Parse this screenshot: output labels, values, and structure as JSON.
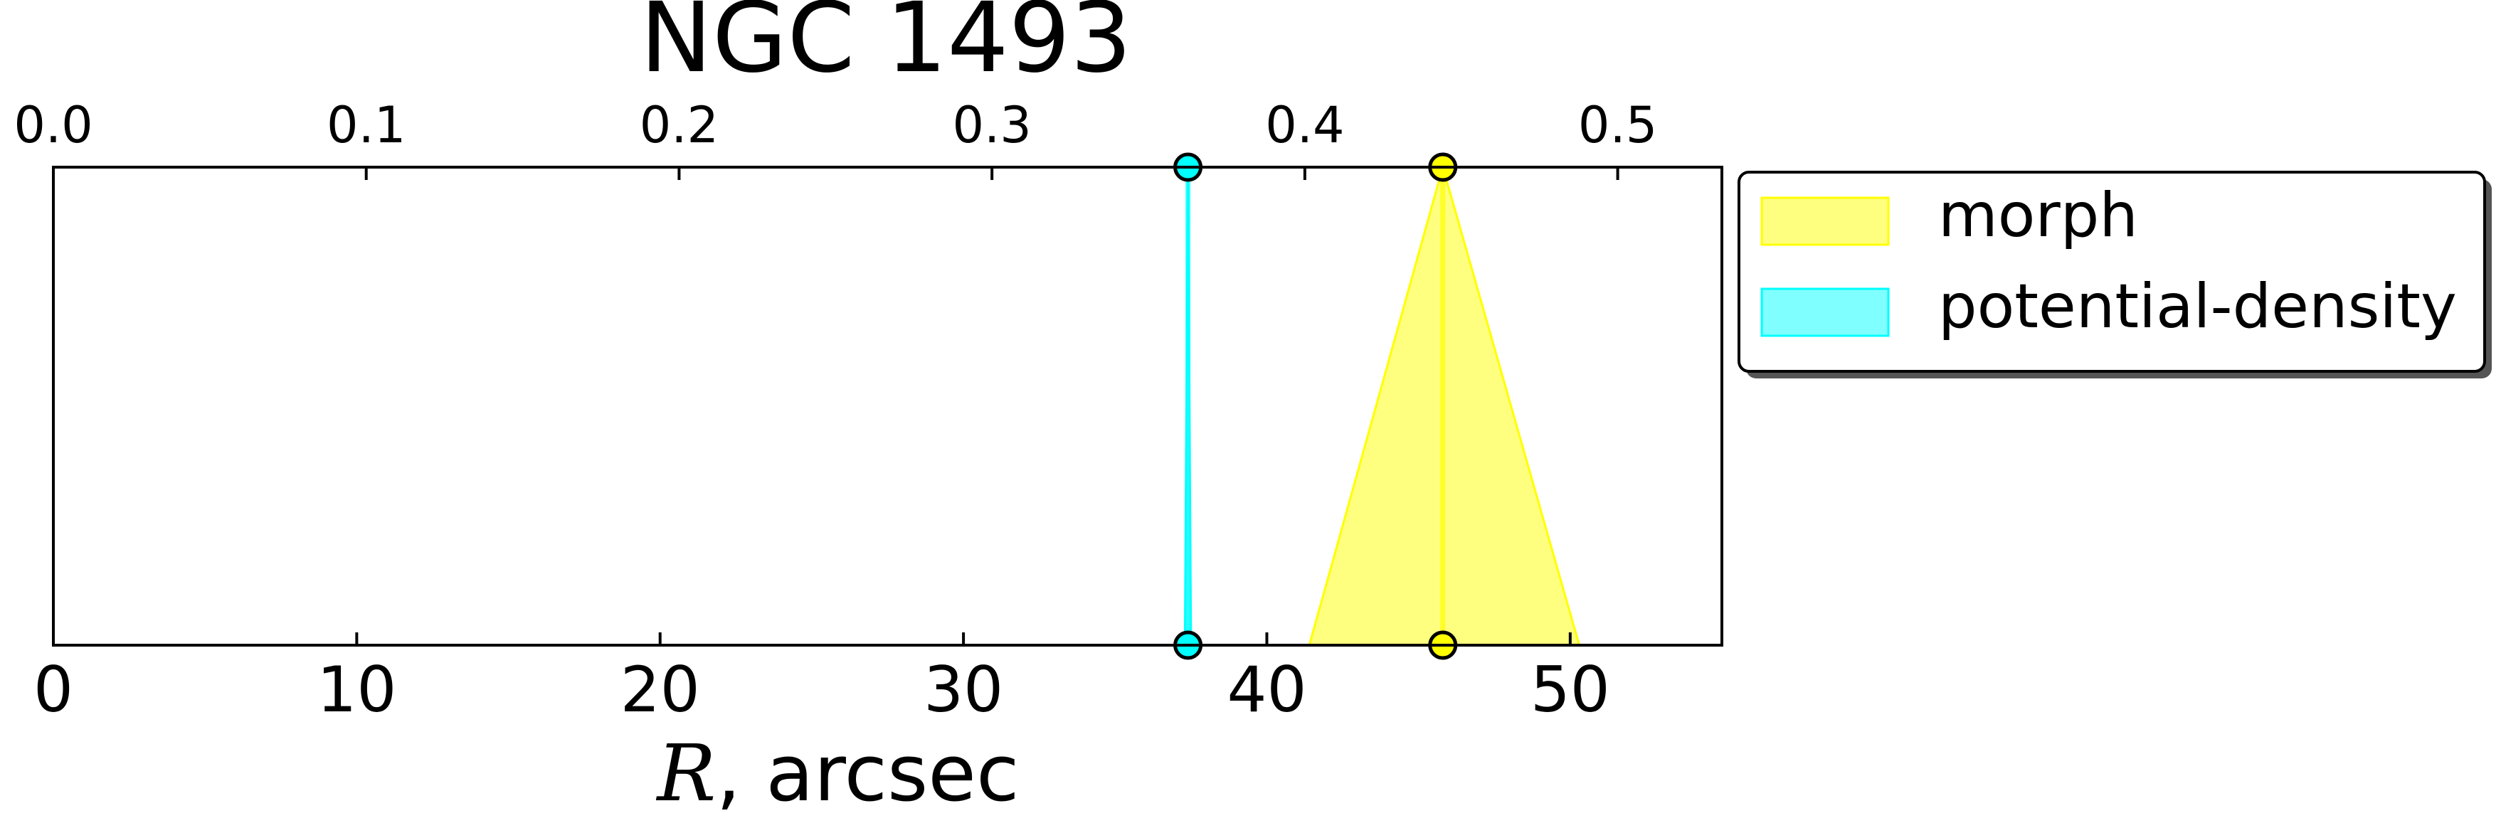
{
  "chart_data": {
    "type": "area",
    "title": "NGC 1493",
    "xlabel_math": "R",
    "xlabel_rest": ", arcsec",
    "xlim": [
      0,
      55
    ],
    "x_ticks": [
      0,
      10,
      20,
      30,
      40,
      50
    ],
    "x_tick_labels": [
      "0",
      "10",
      "20",
      "30",
      "40",
      "50"
    ],
    "top_axis": {
      "xlim": [
        0,
        0.5333
      ],
      "ticks": [
        0.0,
        0.1,
        0.2,
        0.3,
        0.4,
        0.5
      ],
      "tick_labels": [
        "0.0",
        "0.1",
        "0.2",
        "0.3",
        "0.4",
        "0.5"
      ]
    },
    "ylim": [
      0,
      1
    ],
    "grid": false,
    "legend_position": "outside-top-right",
    "series": [
      {
        "name": "morph",
        "color": "#ffff00",
        "center": 45.8,
        "lower": 41.4,
        "upper": 50.3
      },
      {
        "name": "potential-density",
        "color": "#00ffff",
        "center": 37.4,
        "lower": 37.3,
        "upper": 37.5
      }
    ]
  }
}
